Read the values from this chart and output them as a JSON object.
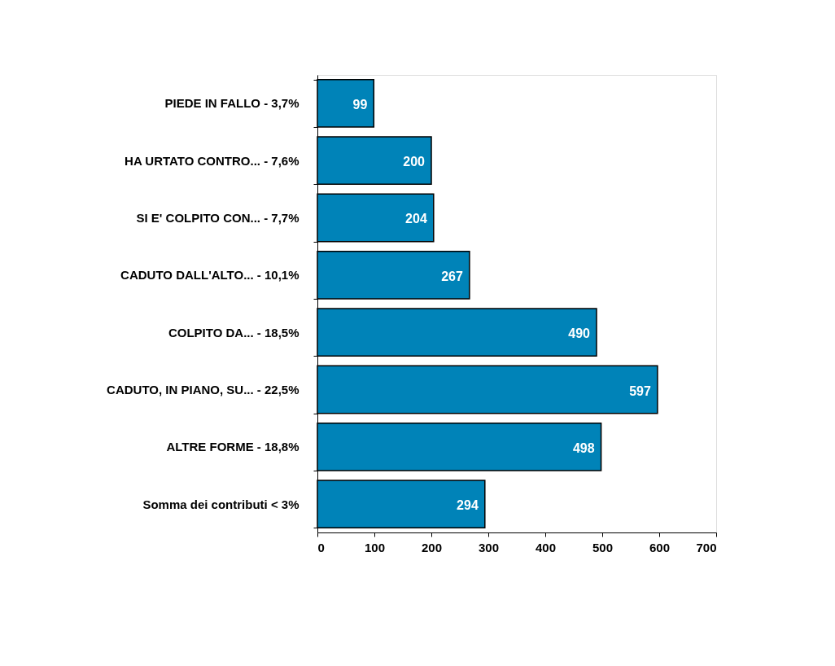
{
  "chart_data": {
    "type": "bar",
    "orientation": "horizontal",
    "categories": [
      "PIEDE IN FALLO - 3,7%",
      "HA URTATO CONTRO... - 7,6%",
      "SI E' COLPITO CON... - 7,7%",
      "CADUTO DALL'ALTO... - 10,1%",
      "COLPITO DA... - 18,5%",
      "CADUTO, IN PIANO, SU... - 22,5%",
      "ALTRE FORME - 18,8%",
      "Somma dei contributi < 3%"
    ],
    "values": [
      99,
      200,
      204,
      267,
      490,
      597,
      498,
      294
    ],
    "color": "#0083b8",
    "xlim": [
      0,
      700
    ],
    "xticks": [
      0,
      100,
      200,
      300,
      400,
      500,
      600,
      700
    ],
    "data_labels": true
  }
}
